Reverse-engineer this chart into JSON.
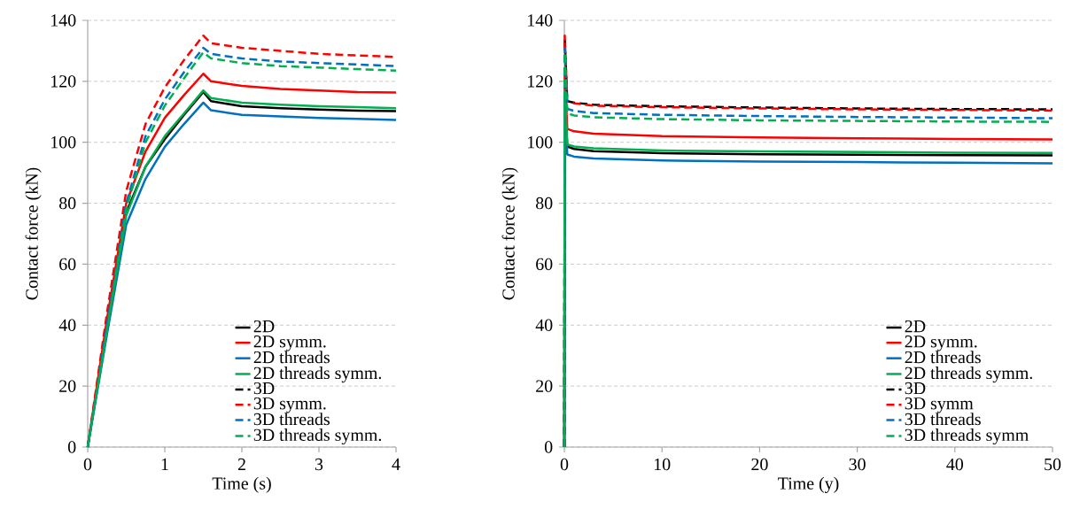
{
  "chart_data": [
    {
      "type": "line",
      "xlabel": "Time (s)",
      "ylabel": "Contact force (kN)",
      "xlim": [
        0,
        4
      ],
      "ylim": [
        0,
        140
      ],
      "xticks": [
        0,
        1,
        2,
        3,
        4
      ],
      "yticks": [
        0,
        20,
        40,
        60,
        80,
        100,
        120,
        140
      ],
      "grid": "y",
      "legend": "bottom right",
      "x": [
        0,
        0.25,
        0.5,
        0.75,
        1,
        1.25,
        1.5,
        1.6,
        2,
        2.5,
        3,
        3.5,
        4
      ],
      "series": [
        {
          "name": "2D",
          "color": "#000000",
          "line_style": "solid",
          "values": [
            0,
            40,
            77,
            92,
            101,
            109,
            116.5,
            113.5,
            111.8,
            111.2,
            110.7,
            110.4,
            110.2
          ]
        },
        {
          "name": "2D symm.",
          "color": "#ff0000",
          "line_style": "solid",
          "values": [
            0,
            42,
            80,
            97,
            108,
            115.5,
            122.5,
            120,
            118.5,
            117.5,
            117,
            116.5,
            116.3
          ]
        },
        {
          "name": "2D threads",
          "color": "#0070c0",
          "line_style": "solid",
          "values": [
            0,
            37,
            73,
            88,
            98.5,
            106,
            113,
            110.5,
            109,
            108.5,
            108,
            107.7,
            107.3
          ]
        },
        {
          "name": "2D threads symm.",
          "color": "#00b050",
          "line_style": "solid",
          "values": [
            0,
            39,
            76,
            92,
            102,
            109.5,
            117,
            114.5,
            113,
            112.3,
            111.8,
            111.5,
            111.2
          ]
        },
        {
          "name": "3D",
          "color": "#000000",
          "line_style": "dashed",
          "values": [
            null,
            null,
            null,
            null,
            null,
            null,
            null,
            null,
            null,
            null,
            null,
            null,
            null
          ]
        },
        {
          "name": "3D symm.",
          "color": "#ff0000",
          "line_style": "dashed",
          "values": [
            0,
            44,
            84,
            106,
            118,
            127,
            135,
            132.5,
            131,
            130,
            129,
            128.5,
            128
          ]
        },
        {
          "name": "3D threads",
          "color": "#0070c0",
          "line_style": "dashed",
          "values": [
            0,
            40,
            80,
            102,
            114,
            123,
            131,
            129,
            127.5,
            126.5,
            126,
            125.5,
            125
          ]
        },
        {
          "name": "3D threads symm.",
          "color": "#00b050",
          "line_style": "dashed",
          "values": [
            0,
            38,
            78,
            100,
            112,
            121,
            129.5,
            127.5,
            126,
            125,
            124.5,
            124,
            123.5
          ]
        }
      ]
    },
    {
      "type": "line",
      "xlabel": "Time (y)",
      "ylabel": "Contact force (kN)",
      "xlim": [
        0,
        50
      ],
      "ylim": [
        0,
        140
      ],
      "xticks": [
        0,
        10,
        20,
        30,
        40,
        50
      ],
      "yticks": [
        0,
        20,
        40,
        60,
        80,
        100,
        120,
        140
      ],
      "grid": "y",
      "legend": "bottom right",
      "x": [
        0,
        0.04,
        0.3,
        1,
        3,
        10,
        20,
        30,
        40,
        50
      ],
      "series": [
        {
          "name": "2D",
          "color": "#000000",
          "line_style": "solid",
          "values": [
            0,
            116.5,
            98.6,
            97.8,
            97.1,
            96.4,
            96.1,
            95.9,
            95.8,
            95.7
          ]
        },
        {
          "name": "2D symm.",
          "color": "#ff0000",
          "line_style": "solid",
          "values": [
            0,
            122.5,
            104.4,
            103.6,
            102.8,
            102,
            101.6,
            101.3,
            101.1,
            100.9
          ]
        },
        {
          "name": "2D threads",
          "color": "#0070c0",
          "line_style": "solid",
          "values": [
            0,
            113,
            96,
            95.3,
            94.7,
            94,
            93.7,
            93.5,
            93.3,
            93.1
          ]
        },
        {
          "name": "2D threads symm.",
          "color": "#00b050",
          "line_style": "solid",
          "values": [
            0,
            117,
            99.3,
            98.6,
            98,
            97.3,
            97,
            96.8,
            96.6,
            96.5
          ]
        },
        {
          "name": "3D",
          "color": "#000000",
          "line_style": "dashed",
          "values": [
            0,
            134,
            113.5,
            113,
            112.3,
            111.8,
            111.4,
            111.1,
            110.9,
            110.8
          ]
        },
        {
          "name": "3D symm",
          "color": "#ff0000",
          "line_style": "dashed",
          "values": [
            0,
            135,
            113.3,
            112.8,
            112,
            111.5,
            111.1,
            110.8,
            110.6,
            110.4
          ]
        },
        {
          "name": "3D threads",
          "color": "#0070c0",
          "line_style": "dashed",
          "values": [
            0,
            131,
            111,
            110.3,
            109.6,
            109,
            108.6,
            108.3,
            108.1,
            107.9
          ]
        },
        {
          "name": "3D threads symm",
          "color": "#00b050",
          "line_style": "dashed",
          "values": [
            0,
            129.5,
            109.5,
            108.8,
            108.2,
            107.6,
            107.2,
            107,
            106.8,
            106.7
          ]
        }
      ]
    }
  ]
}
